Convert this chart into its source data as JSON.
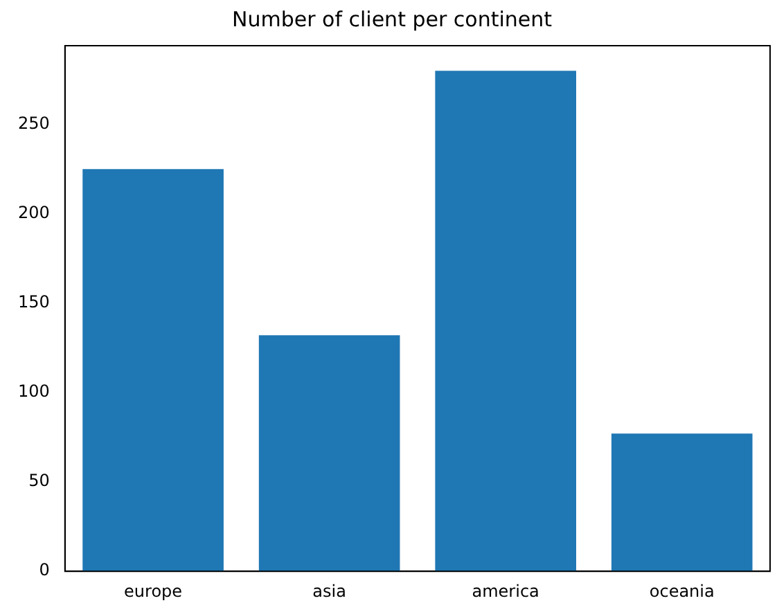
{
  "chart_data": {
    "type": "bar",
    "title": "Number of client per continent",
    "categories": [
      "europe",
      "asia",
      "america",
      "oceania"
    ],
    "values": [
      225,
      132,
      280,
      77
    ],
    "color": "#1f77b4",
    "ylim": [
      0,
      294
    ],
    "yticks": [
      0,
      50,
      100,
      150,
      200,
      250
    ],
    "grid": false,
    "legend": false
  }
}
